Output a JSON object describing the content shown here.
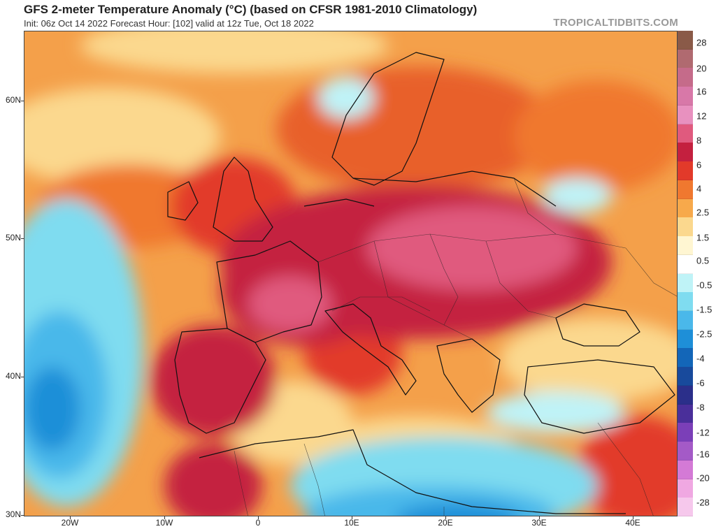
{
  "header": {
    "title": "GFS 2-meter Temperature Anomaly (°C) (based on CFSR 1981-2010 Climatology)",
    "subtitle": "Init: 06z Oct 14 2022   Forecast Hour: [102]   valid at 12z Tue, Oct 18 2022",
    "brand": "TROPICALTIDBITS.COM"
  },
  "axes": {
    "lat_labels": [
      "60N",
      "50N",
      "40N",
      "30N"
    ],
    "lon_labels": [
      "20W",
      "10W",
      "0",
      "10E",
      "20E",
      "30E",
      "40E"
    ]
  },
  "colorbar": {
    "labels": [
      "28",
      "20",
      "16",
      "12",
      "8",
      "6",
      "4",
      "2.5",
      "1.5",
      "0.5",
      "-0.5",
      "-1.5",
      "-2.5",
      "-4",
      "-6",
      "-8",
      "-12",
      "-16",
      "-20",
      "-28"
    ],
    "colors": [
      "#8a5a48",
      "#b06a70",
      "#c56b8a",
      "#d878a8",
      "#e891bf",
      "#e05a7e",
      "#c4203f",
      "#e23a2a",
      "#f0782f",
      "#f7a94b",
      "#fbd88e",
      "#fff6d2",
      "#ffffff",
      "#bff3f7",
      "#7fdcf0",
      "#4ab8ea",
      "#1e8fd8",
      "#1366b8",
      "#184a9c",
      "#2b2f8a",
      "#4a2f9a",
      "#7b3fb8",
      "#a45ac7",
      "#d47ad6",
      "#f0a8e2",
      "#f6c8ec"
    ]
  },
  "colors": {
    "frame": "#444444",
    "ocean_warm": "#f7a94b",
    "ocean_cold": "#4ab8ea",
    "hot_core": "#c4203f"
  }
}
